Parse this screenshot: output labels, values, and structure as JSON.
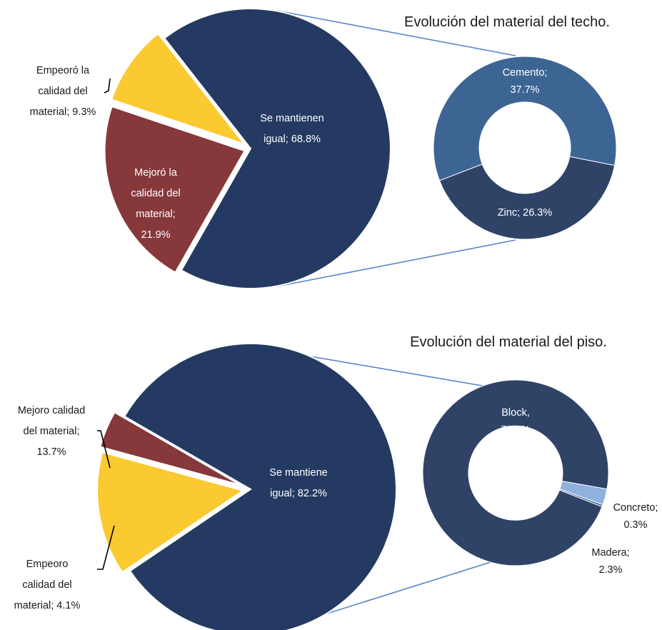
{
  "chart_data": [
    {
      "type": "pie",
      "exploded_slices": true,
      "categories": [
        "Se mantienen igual",
        "Mejoró la calidad del material",
        "Empeoró la calidad del material"
      ],
      "values": [
        68.8,
        21.9,
        9.3
      ],
      "unit": "%",
      "colors": [
        "#243a62",
        "#86383b",
        "#fbc930"
      ],
      "labels": [
        [
          "Se mantienen",
          "igual; 68.8%"
        ],
        [
          "Mejoró la",
          "calidad del",
          "material;",
          "21.9%"
        ],
        [
          "Empeoró la",
          "calidad del",
          "material; 9.3%"
        ]
      ],
      "breakdown": {
        "type": "donut",
        "title": "Evolución del material del techo.",
        "categories": [
          "Cemento",
          "Zinc"
        ],
        "values": [
          37.7,
          26.3
        ],
        "unit": "%",
        "colors": [
          "#3c6594",
          "#2f4367"
        ],
        "labels": [
          [
            "Cemento;",
            "37.7%"
          ],
          [
            "Zinc; 26.3%"
          ]
        ]
      }
    },
    {
      "type": "pie",
      "exploded_slices": true,
      "categories": [
        "Se mantiene igual",
        "Mejoro calidad del material",
        "Empeoro calidad del material"
      ],
      "values": [
        82.2,
        13.7,
        4.1
      ],
      "unit": "%",
      "colors": [
        "#243a62",
        "#fbc930",
        "#86383b"
      ],
      "labels": [
        [
          "Se mantiene",
          "igual; 82.2%"
        ],
        [
          "Mejoro calidad",
          "del material;",
          "13.7%"
        ],
        [
          "Empeoro",
          "calidad del",
          "material; 4.1%"
        ]
      ],
      "breakdown": {
        "type": "donut",
        "title": "Evolución del material del piso.",
        "categories": [
          "Block",
          "Concreto",
          "Madera"
        ],
        "values": [
          79.6,
          0.3,
          2.3
        ],
        "unit": "%",
        "colors": [
          "#2f4367",
          "#3c6594",
          "#8eb1de"
        ],
        "labels": [
          [
            "Block,",
            "79.6%"
          ],
          [
            "Concreto;",
            "0.3%"
          ],
          [
            "Madera;",
            "2.3%"
          ]
        ]
      }
    }
  ]
}
